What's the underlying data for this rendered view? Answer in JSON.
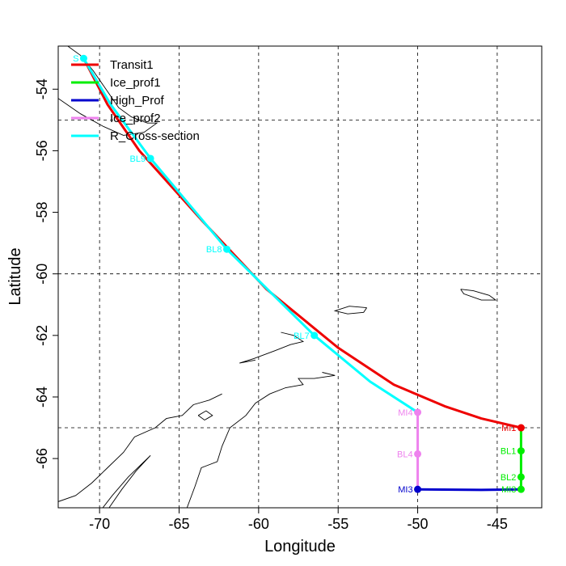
{
  "chart_data": {
    "type": "map",
    "xlabel": "Longitude",
    "ylabel": "Latitude",
    "xlim": [
      -72.6,
      -42.2
    ],
    "ylim": [
      -67.6,
      -52.6
    ],
    "x_ticks": [
      -70,
      -65,
      -60,
      -55,
      -50,
      -45
    ],
    "y_ticks": [
      -54,
      -56,
      -58,
      -60,
      -62,
      -64,
      -66
    ],
    "grid_lon": [
      -70,
      -65,
      -60,
      -55,
      -50,
      -45
    ],
    "grid_lat": [
      -55,
      -60,
      -65
    ],
    "legend": [
      {
        "label": "Transit1",
        "color": "#ee0000"
      },
      {
        "label": "Ice_prof1",
        "color": "#00ee00"
      },
      {
        "label": "High_Prof",
        "color": "#0000cd"
      },
      {
        "label": "Ice_prof2",
        "color": "#ee82ee"
      },
      {
        "label": "R_Cross-section",
        "color": "#00ffff"
      }
    ],
    "series": [
      {
        "name": "Transit1",
        "color": "#ee0000",
        "points": [
          [
            -71,
            -53
          ],
          [
            -69.5,
            -54.5
          ],
          [
            -67.5,
            -56
          ],
          [
            -63.5,
            -58.3
          ],
          [
            -59.5,
            -60.5
          ],
          [
            -55,
            -62.4
          ],
          [
            -51.5,
            -63.6
          ],
          [
            -48.3,
            -64.3
          ],
          [
            -46,
            -64.7
          ],
          [
            -43.5,
            -65
          ]
        ]
      },
      {
        "name": "Ice_prof1",
        "color": "#00ee00",
        "points": [
          [
            -43.5,
            -65
          ],
          [
            -43.5,
            -65.75
          ],
          [
            -43.5,
            -66.6
          ],
          [
            -43.5,
            -67
          ]
        ]
      },
      {
        "name": "High_Prof",
        "color": "#0000cd",
        "points": [
          [
            -50,
            -67
          ],
          [
            -46,
            -67.02
          ],
          [
            -43.5,
            -67
          ]
        ]
      },
      {
        "name": "Ice_prof2",
        "color": "#ee82ee",
        "points": [
          [
            -50,
            -64.5
          ],
          [
            -50,
            -65.85
          ],
          [
            -50,
            -67
          ]
        ]
      },
      {
        "name": "R_Cross-section",
        "color": "#00ffff",
        "points": [
          [
            -71,
            -53
          ],
          [
            -69.3,
            -54.5
          ],
          [
            -66.8,
            -56.25
          ],
          [
            -62,
            -59.2
          ],
          [
            -56.5,
            -62
          ],
          [
            -53,
            -63.5
          ],
          [
            -50,
            -64.5
          ]
        ]
      }
    ],
    "stations": [
      {
        "label": "MI1",
        "lon": -43.5,
        "lat": -65,
        "color": "#ee0000"
      },
      {
        "label": "BL1",
        "lon": -43.5,
        "lat": -65.75,
        "color": "#00ee00"
      },
      {
        "label": "BL2",
        "lon": -43.5,
        "lat": -66.6,
        "color": "#00ee00"
      },
      {
        "label": "MI3",
        "lon": -43.5,
        "lat": -67,
        "color": "#00ee00"
      },
      {
        "label": "MI3",
        "lon": -50,
        "lat": -67,
        "color": "#0000cd"
      },
      {
        "label": "BL4",
        "lon": -50,
        "lat": -65.85,
        "color": "#ee82ee"
      },
      {
        "label": "MI4",
        "lon": -50,
        "lat": -64.5,
        "color": "#ee82ee"
      },
      {
        "label": "BL7",
        "lon": -56.5,
        "lat": -62,
        "color": "#00ffff"
      },
      {
        "label": "BL8",
        "lon": -62,
        "lat": -59.2,
        "color": "#00ffff"
      },
      {
        "label": "BL9",
        "lon": -66.8,
        "lat": -56.25,
        "color": "#00ffff"
      },
      {
        "label": "S",
        "lon": -71,
        "lat": -53,
        "color": "#00ffff"
      }
    ],
    "coastline": [
      [
        [
          -72.6,
          -52.6
        ],
        [
          -72,
          -52.6
        ],
        [
          -71.2,
          -52.9
        ],
        [
          -70.4,
          -53.4
        ],
        [
          -69.6,
          -54
        ],
        [
          -68.8,
          -54.6
        ],
        [
          -68,
          -54.9
        ],
        [
          -67,
          -55.1
        ],
        [
          -66.4,
          -55.1
        ],
        [
          -67.2,
          -55.4
        ],
        [
          -68.5,
          -55.5
        ],
        [
          -69.8,
          -55.2
        ],
        [
          -71.2,
          -54.8
        ],
        [
          -72.6,
          -54.3
        ]
      ],
      [
        [
          -58.6,
          -61.9
        ],
        [
          -57.8,
          -62.0
        ],
        [
          -57.2,
          -62.2
        ],
        [
          -58,
          -62.3
        ],
        [
          -59,
          -62.5
        ],
        [
          -60.3,
          -62.75
        ],
        [
          -61.2,
          -62.9
        ],
        [
          -60.2,
          -62.8
        ]
      ],
      [
        [
          -53.2,
          -61.1
        ],
        [
          -54.3,
          -61.05
        ],
        [
          -55.2,
          -61.2
        ],
        [
          -54.4,
          -61.3
        ],
        [
          -53.4,
          -61.25
        ],
        [
          -53.2,
          -61.1
        ]
      ],
      [
        [
          -47.3,
          -60.5
        ],
        [
          -46.5,
          -60.55
        ],
        [
          -45.5,
          -60.7
        ],
        [
          -45.1,
          -60.85
        ],
        [
          -46,
          -60.85
        ],
        [
          -47.1,
          -60.65
        ],
        [
          -47.3,
          -60.5
        ]
      ],
      [
        [
          -56,
          -63.2
        ],
        [
          -55.2,
          -63.3
        ],
        [
          -56.5,
          -63.4
        ],
        [
          -57.5,
          -63.4
        ],
        [
          -57.2,
          -63.6
        ],
        [
          -58.3,
          -63.7
        ],
        [
          -59.3,
          -63.9
        ],
        [
          -60.2,
          -64.2
        ],
        [
          -60.8,
          -64.6
        ],
        [
          -61.8,
          -65
        ],
        [
          -62.3,
          -65.6
        ],
        [
          -62.6,
          -66.1
        ],
        [
          -63.6,
          -66.3
        ],
        [
          -64,
          -66.9
        ],
        [
          -64.5,
          -67.6
        ]
      ],
      [
        [
          -72.6,
          -67.4
        ],
        [
          -71.5,
          -67.2
        ],
        [
          -70.5,
          -66.8
        ],
        [
          -69.5,
          -66.3
        ],
        [
          -68.5,
          -65.8
        ],
        [
          -67.8,
          -65.3
        ],
        [
          -66.5,
          -65.0
        ],
        [
          -65.8,
          -64.7
        ],
        [
          -64.8,
          -64.6
        ],
        [
          -64.1,
          -64.25
        ],
        [
          -63.1,
          -64.1
        ],
        [
          -62.3,
          -63.9
        ]
      ],
      [
        [
          -69.8,
          -67.6
        ],
        [
          -69.2,
          -67.2
        ],
        [
          -68.2,
          -66.6
        ],
        [
          -67.4,
          -66.2
        ],
        [
          -66.8,
          -65.9
        ],
        [
          -67.7,
          -66.4
        ],
        [
          -68.6,
          -67.0
        ],
        [
          -69.4,
          -67.6
        ]
      ],
      [
        [
          -63.8,
          -64.6
        ],
        [
          -63.4,
          -64.75
        ],
        [
          -62.9,
          -64.6
        ],
        [
          -63.3,
          -64.45
        ],
        [
          -63.8,
          -64.6
        ]
      ]
    ]
  }
}
